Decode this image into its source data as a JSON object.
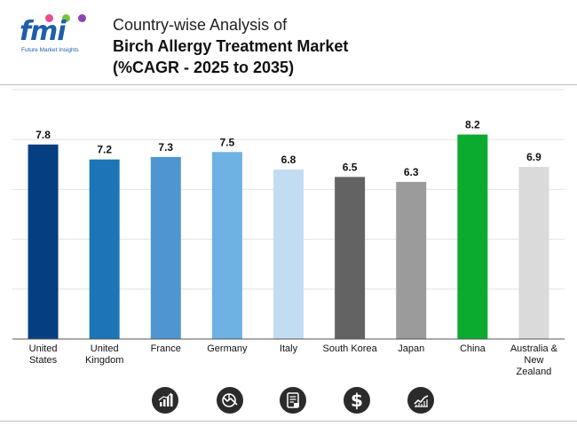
{
  "logo": {
    "text": "fmi",
    "tagline": "Future Market Insights",
    "dot_colors": [
      "#e74c8b",
      "#7ac143",
      "#8e44ad"
    ]
  },
  "header": {
    "line1": "Country-wise Analysis of",
    "line2": "Birch Allergy Treatment Market",
    "line3": "(%CAGR - 2025 to 2035)"
  },
  "footer_icons": [
    "bar-chart-icon",
    "pie-chart-icon",
    "document-icon",
    "dollar-icon",
    "line-chart-icon"
  ],
  "chart_data": {
    "type": "bar",
    "title": "",
    "xlabel": "",
    "ylabel": "",
    "ylim": [
      0,
      10
    ],
    "grid": true,
    "categories": [
      [
        "United",
        "States"
      ],
      [
        "United",
        "Kingdom"
      ],
      [
        "France"
      ],
      [
        "Germany"
      ],
      [
        "Italy"
      ],
      [
        "South Korea"
      ],
      [
        "Japan"
      ],
      [
        "China"
      ],
      [
        "Australia &",
        "New",
        "Zealand"
      ]
    ],
    "values": [
      7.8,
      7.2,
      7.3,
      7.5,
      6.8,
      6.5,
      6.3,
      8.2,
      6.9
    ],
    "value_labels": [
      "7.8",
      "7.2",
      "7.3",
      "7.5",
      "6.8",
      "6.5",
      "6.3",
      "8.2",
      "6.9"
    ],
    "colors": [
      "#053f82",
      "#1b75b6",
      "#4f96d0",
      "#6db2e3",
      "#c2ddf2",
      "#636363",
      "#9b9b9b",
      "#0aab2f",
      "#dadada"
    ]
  }
}
